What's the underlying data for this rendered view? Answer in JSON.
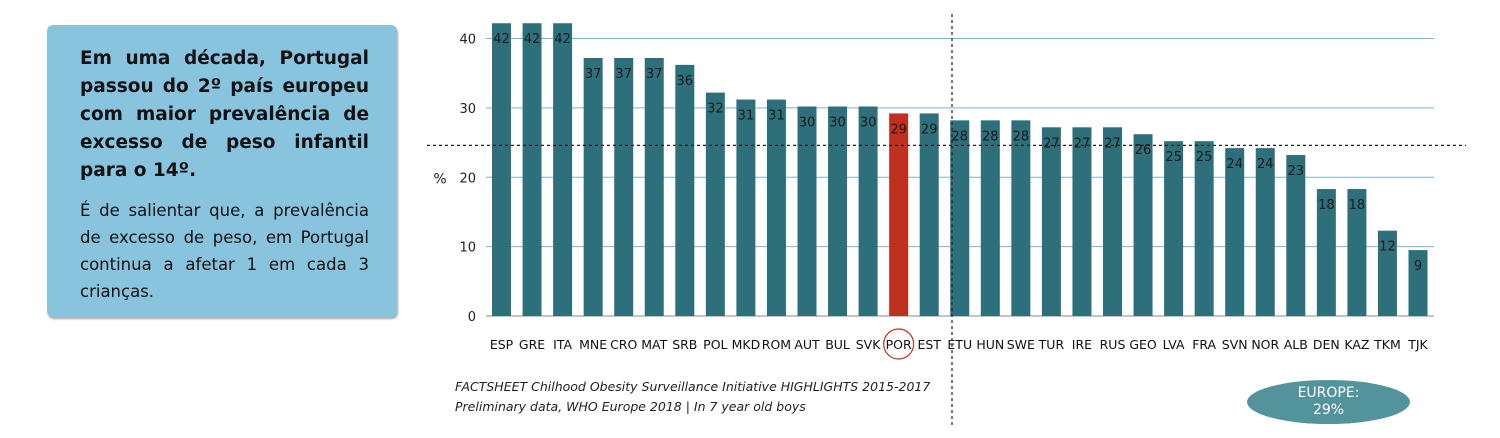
{
  "infobox": {
    "headline": "Em uma década, Portugal passou do 2º país europeu com maior prevalência de excesso de peso infantil para o 14º.",
    "body": "É de salientar que, a prevalência de excesso de peso, em Portugal continua a afetar 1 em cada 3 crianças."
  },
  "source": {
    "line1": "FACTSHEET Chilhood Obesity Surveillance Initiative HIGHLIGHTS 2015-2017",
    "line2": "Preliminary data, WHO Europe 2018 | In 7 year old boys"
  },
  "europe_badge": {
    "label": "EUROPE:",
    "value": "29%"
  },
  "colors": {
    "bar": "#2e6f7c",
    "highlight": "#c0301f",
    "grid": "#7fb3c8",
    "europe_badge": "#52939c",
    "infobox": "#89c4de"
  },
  "chart_data": {
    "type": "bar",
    "ylabel": "%",
    "ylim": [
      0,
      40
    ],
    "yticks": [
      0,
      10,
      20,
      30,
      40
    ],
    "grid": true,
    "highlight_category": "POR",
    "reference_line": {
      "value": 24.6,
      "style": "dashed"
    },
    "categories": [
      "ESP",
      "GRE",
      "ITA",
      "MNE",
      "CRO",
      "MAT",
      "SRB",
      "POL",
      "MKD",
      "ROM",
      "AUT",
      "BUL",
      "SVK",
      "POR",
      "EST",
      "ETU",
      "HUN",
      "SWE",
      "TUR",
      "IRE",
      "RUS",
      "GEO",
      "LVA",
      "FRA",
      "SVN",
      "NOR",
      "ALB",
      "DEN",
      "KAZ",
      "TKM",
      "TJK"
    ],
    "values": [
      42,
      42,
      42,
      37,
      37,
      37,
      36,
      32,
      31,
      31,
      30,
      30,
      30,
      29,
      29,
      28,
      28,
      28,
      27,
      27,
      27,
      26,
      25,
      25,
      24,
      24,
      23,
      18,
      18,
      12,
      9
    ],
    "bar_heights": [
      42.2,
      42.2,
      42.2,
      37.2,
      37.2,
      37.2,
      36.2,
      32.2,
      31.2,
      31.2,
      30.2,
      30.2,
      30.2,
      29.2,
      29.2,
      28.2,
      28.2,
      28.2,
      27.2,
      27.2,
      27.2,
      26.2,
      25.2,
      25.2,
      24.2,
      24.2,
      23.2,
      18.3,
      18.3,
      12.3,
      9.5
    ]
  }
}
